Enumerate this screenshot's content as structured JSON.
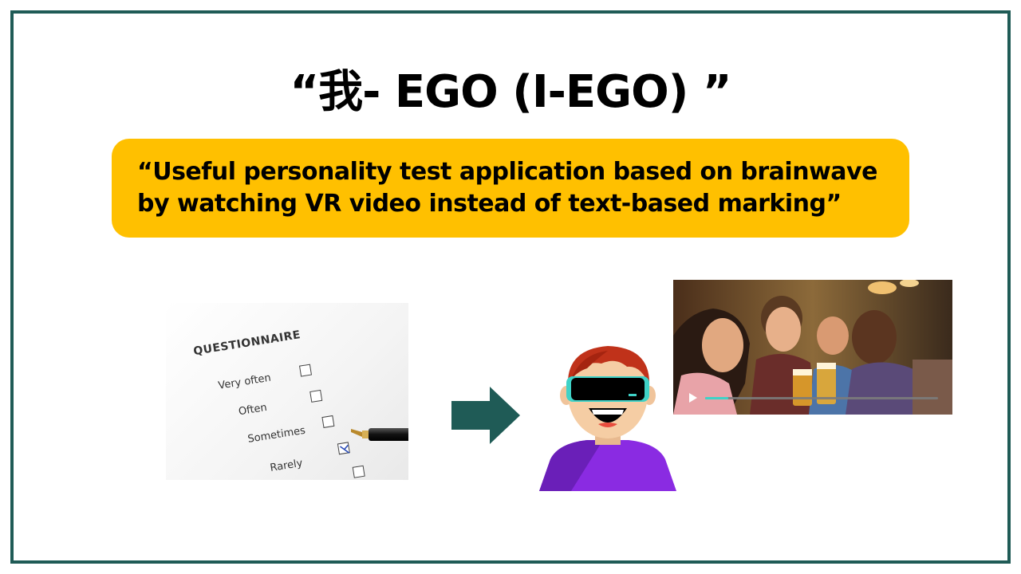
{
  "slide": {
    "title": "“我- EGO (I-EGO) ”",
    "subtitle_lines": [
      "“Useful personality test application based on brainwave",
      "by watching VR video instead of text-based marking”"
    ]
  },
  "questionnaire": {
    "heading": "QUESTIONNAIRE",
    "options": [
      "Very often",
      "Often",
      "Sometimes",
      "Rarely"
    ],
    "checked_option": "Sometimes"
  },
  "video_player": {
    "progress": 0.1
  },
  "colors": {
    "frame": "#1f5b56",
    "subtitle_background": "#ffc000",
    "arrow": "#1f5b56",
    "avatar_shirt": "#8a2be2",
    "avatar_hair": "#c0321a",
    "video_progress": "#3fd2c7"
  },
  "icons": {
    "arrow": "arrow-right-icon",
    "play": "play-icon"
  }
}
